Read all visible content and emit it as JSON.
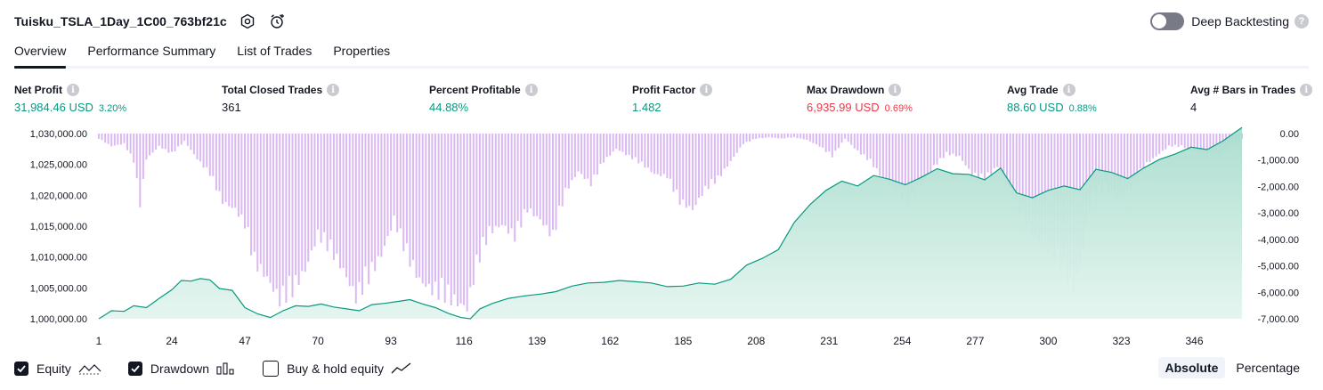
{
  "header": {
    "strategy_title": "Tuisku_TSLA_1Day_1C00_763bf21c",
    "deep_backtesting_label": "Deep Backtesting",
    "deep_backtesting_enabled": false
  },
  "tabs": [
    {
      "label": "Overview",
      "active": true
    },
    {
      "label": "Performance Summary",
      "active": false
    },
    {
      "label": "List of Trades",
      "active": false
    },
    {
      "label": "Properties",
      "active": false
    }
  ],
  "metrics": {
    "net_profit": {
      "label": "Net Profit",
      "value": "31,984.46 USD",
      "pct": "3.20%"
    },
    "total_closed_trades": {
      "label": "Total Closed Trades",
      "value": "361"
    },
    "percent_profitable": {
      "label": "Percent Profitable",
      "value": "44.88%"
    },
    "profit_factor": {
      "label": "Profit Factor",
      "value": "1.482"
    },
    "max_drawdown": {
      "label": "Max Drawdown",
      "value": "6,935.99 USD",
      "pct": "0.69%"
    },
    "avg_trade": {
      "label": "Avg Trade",
      "value": "88.60 USD",
      "pct": "0.88%"
    },
    "avg_bars": {
      "label": "Avg # Bars in Trades",
      "value": "4"
    }
  },
  "legend": {
    "equity": {
      "label": "Equity",
      "checked": true
    },
    "drawdown": {
      "label": "Drawdown",
      "checked": true
    },
    "buy_hold": {
      "label": "Buy & hold equity",
      "checked": false
    }
  },
  "modes": {
    "absolute": "Absolute",
    "percentage": "Percentage",
    "active": "absolute"
  },
  "colors": {
    "equity_line": "#089981",
    "equity_fill": "#b2e0d3",
    "drawdown_bar": "#d8b4f0",
    "positive": "#089981",
    "negative": "#f23645"
  },
  "chart_data": {
    "type": "area",
    "x_ticks": [
      1,
      24,
      47,
      70,
      93,
      116,
      139,
      162,
      185,
      208,
      231,
      254,
      277,
      300,
      323,
      346
    ],
    "x_range": [
      1,
      361
    ],
    "left_axis": {
      "ticks": [
        "1,000,000.00",
        "1,005,000.00",
        "1,010,000.00",
        "1,015,000.00",
        "1,020,000.00",
        "1,025,000.00",
        "1,030,000.00"
      ],
      "range": [
        1000000,
        1030000
      ]
    },
    "right_axis": {
      "ticks": [
        "0.00",
        "-1,000.00",
        "-2,000.00",
        "-3,000.00",
        "-4,000.00",
        "-5,000.00",
        "-6,000.00",
        "-7,000.00"
      ],
      "range": [
        -7000,
        0
      ]
    },
    "grid": false,
    "series": [
      {
        "name": "Equity",
        "axis": "left",
        "points": [
          [
            1,
            1000000
          ],
          [
            5,
            1001300
          ],
          [
            9,
            1001200
          ],
          [
            12,
            1002100
          ],
          [
            16,
            1001800
          ],
          [
            20,
            1003300
          ],
          [
            24,
            1004700
          ],
          [
            27,
            1006200
          ],
          [
            30,
            1006100
          ],
          [
            33,
            1006500
          ],
          [
            36,
            1006300
          ],
          [
            39,
            1004900
          ],
          [
            43,
            1004600
          ],
          [
            47,
            1001800
          ],
          [
            51,
            1000800
          ],
          [
            55,
            1000200
          ],
          [
            59,
            1001300
          ],
          [
            63,
            1002100
          ],
          [
            67,
            1002000
          ],
          [
            71,
            1002400
          ],
          [
            75,
            1001900
          ],
          [
            79,
            1001600
          ],
          [
            83,
            1001300
          ],
          [
            87,
            1002300
          ],
          [
            91,
            1002500
          ],
          [
            95,
            1002800
          ],
          [
            99,
            1003100
          ],
          [
            103,
            1002400
          ],
          [
            107,
            1001800
          ],
          [
            111,
            1000900
          ],
          [
            115,
            1000200
          ],
          [
            118,
            1000000
          ],
          [
            121,
            1001600
          ],
          [
            125,
            1002500
          ],
          [
            130,
            1003300
          ],
          [
            135,
            1003700
          ],
          [
            140,
            1004000
          ],
          [
            145,
            1004400
          ],
          [
            150,
            1005300
          ],
          [
            155,
            1005800
          ],
          [
            160,
            1005900
          ],
          [
            165,
            1006200
          ],
          [
            170,
            1006000
          ],
          [
            175,
            1005800
          ],
          [
            180,
            1005200
          ],
          [
            185,
            1005300
          ],
          [
            190,
            1005800
          ],
          [
            195,
            1005600
          ],
          [
            200,
            1006400
          ],
          [
            205,
            1008700
          ],
          [
            210,
            1009800
          ],
          [
            215,
            1011200
          ],
          [
            220,
            1015600
          ],
          [
            225,
            1018500
          ],
          [
            230,
            1020800
          ],
          [
            235,
            1022300
          ],
          [
            240,
            1021500
          ],
          [
            245,
            1023200
          ],
          [
            250,
            1022600
          ],
          [
            255,
            1021700
          ],
          [
            260,
            1022900
          ],
          [
            265,
            1024300
          ],
          [
            270,
            1023500
          ],
          [
            275,
            1023400
          ],
          [
            280,
            1022500
          ],
          [
            285,
            1024400
          ],
          [
            290,
            1020400
          ],
          [
            295,
            1019600
          ],
          [
            300,
            1020800
          ],
          [
            305,
            1021500
          ],
          [
            310,
            1020900
          ],
          [
            315,
            1024200
          ],
          [
            320,
            1023700
          ],
          [
            325,
            1022700
          ],
          [
            330,
            1024400
          ],
          [
            335,
            1025800
          ],
          [
            340,
            1026700
          ],
          [
            345,
            1027800
          ],
          [
            350,
            1027400
          ],
          [
            355,
            1028800
          ],
          [
            361,
            1031000
          ]
        ]
      },
      {
        "name": "Drawdown",
        "axis": "right",
        "points": [
          [
            1,
            -200
          ],
          [
            5,
            -500
          ],
          [
            9,
            -400
          ],
          [
            12,
            -1100
          ],
          [
            14,
            -2800
          ],
          [
            16,
            -1000
          ],
          [
            20,
            -500
          ],
          [
            24,
            -800
          ],
          [
            28,
            -300
          ],
          [
            32,
            -1000
          ],
          [
            36,
            -1600
          ],
          [
            40,
            -2700
          ],
          [
            44,
            -3000
          ],
          [
            47,
            -3600
          ],
          [
            50,
            -5100
          ],
          [
            54,
            -5700
          ],
          [
            58,
            -6600
          ],
          [
            62,
            -6200
          ],
          [
            66,
            -5400
          ],
          [
            70,
            -4000
          ],
          [
            74,
            -4600
          ],
          [
            78,
            -5400
          ],
          [
            82,
            -6500
          ],
          [
            86,
            -5700
          ],
          [
            90,
            -4800
          ],
          [
            94,
            -3400
          ],
          [
            98,
            -4800
          ],
          [
            102,
            -5800
          ],
          [
            106,
            -6200
          ],
          [
            110,
            -6400
          ],
          [
            114,
            -6700
          ],
          [
            117,
            -6900
          ],
          [
            120,
            -5200
          ],
          [
            124,
            -3900
          ],
          [
            128,
            -3600
          ],
          [
            132,
            -4100
          ],
          [
            136,
            -3000
          ],
          [
            140,
            -3400
          ],
          [
            144,
            -4100
          ],
          [
            148,
            -2300
          ],
          [
            152,
            -1500
          ],
          [
            156,
            -2000
          ],
          [
            160,
            -1100
          ],
          [
            164,
            -600
          ],
          [
            168,
            -900
          ],
          [
            172,
            -1200
          ],
          [
            176,
            -1600
          ],
          [
            180,
            -1700
          ],
          [
            184,
            -2700
          ],
          [
            188,
            -3000
          ],
          [
            192,
            -2200
          ],
          [
            196,
            -1800
          ],
          [
            200,
            -1100
          ],
          [
            204,
            -400
          ],
          [
            208,
            -200
          ],
          [
            212,
            -150
          ],
          [
            216,
            -200
          ],
          [
            220,
            -150
          ],
          [
            224,
            -250
          ],
          [
            228,
            -500
          ],
          [
            232,
            -900
          ],
          [
            236,
            -200
          ],
          [
            240,
            -700
          ],
          [
            244,
            -1100
          ],
          [
            248,
            -1800
          ],
          [
            252,
            -2300
          ],
          [
            256,
            -2700
          ],
          [
            260,
            -2000
          ],
          [
            264,
            -1300
          ],
          [
            268,
            -800
          ],
          [
            272,
            -900
          ],
          [
            276,
            -1600
          ],
          [
            280,
            -1800
          ],
          [
            284,
            -1300
          ],
          [
            288,
            -2200
          ],
          [
            292,
            -3400
          ],
          [
            296,
            -4200
          ],
          [
            300,
            -4600
          ],
          [
            304,
            -5100
          ],
          [
            306,
            -5800
          ],
          [
            308,
            -6200
          ],
          [
            310,
            -5200
          ],
          [
            314,
            -2400
          ],
          [
            318,
            -2100
          ],
          [
            322,
            -2600
          ],
          [
            326,
            -2200
          ],
          [
            330,
            -1300
          ],
          [
            334,
            -900
          ],
          [
            338,
            -500
          ],
          [
            342,
            -500
          ],
          [
            346,
            -700
          ],
          [
            350,
            -900
          ],
          [
            354,
            -800
          ],
          [
            357,
            -600
          ],
          [
            361,
            -200
          ]
        ]
      }
    ]
  }
}
